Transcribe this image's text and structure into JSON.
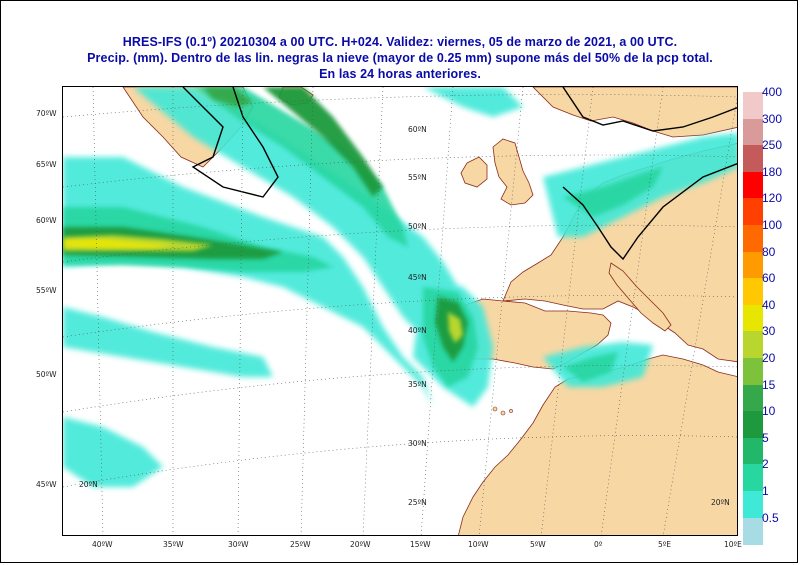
{
  "header": {
    "line1": "HRES-IFS (0.1º) 20210304 a 00 UTC.  H+024. Validez: viernes, 05 de marzo de 2021,  a  00 UTC.",
    "line2": "Precip. (mm). Dentro de las lin. negras la nieve (mayor de 0.25 mm) supone más del 50% de la pcp total.",
    "line3": "En las 24 horas anteriores."
  },
  "left_lat_labels": [
    "70ºW",
    "65ºW",
    "60ºW",
    "55ºW",
    "50ºW",
    "45ºW"
  ],
  "bottom_lon_labels": [
    "40ºW",
    "35ºW",
    "30ºW",
    "25ºW",
    "20ºW",
    "15ºW",
    "10ºW",
    "5ºW",
    "0º",
    "5ºE",
    "10ºE"
  ],
  "inner_lat_labels": [
    "60ºN",
    "55ºN",
    "50ºN",
    "45ºN",
    "40ºN",
    "35ºN",
    "30ºN",
    "25ºN",
    "20ºN",
    "20ºN"
  ],
  "legend": {
    "values": [
      "400",
      "300",
      "250",
      "180",
      "120",
      "100",
      "80",
      "60",
      "40",
      "30",
      "20",
      "15",
      "10",
      "5",
      "2",
      "1",
      "0.5"
    ],
    "colors": [
      "#f2c9c9",
      "#d99a9a",
      "#c45a5a",
      "#ff0000",
      "#ff4000",
      "#ff6a00",
      "#ff9a00",
      "#ffc800",
      "#e6e600",
      "#b8d62e",
      "#7cc23a",
      "#34a84a",
      "#1e9a3e",
      "#22b86a",
      "#28d6a0",
      "#40e8d8",
      "#a8dce4"
    ]
  },
  "colors": {
    "sea": "#ffffff",
    "land": "#f7d7a4",
    "coast": "#8b2a1a",
    "snow_line": "#000000",
    "title": "#0a0aa8"
  }
}
